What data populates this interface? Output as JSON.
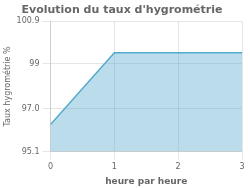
{
  "chart_data": {
    "type": "area",
    "title": "Evolution du taux d'hygrométrie",
    "xlabel": "heure par heure",
    "ylabel": "Taux hygrométrie %",
    "x": [
      0,
      1,
      3
    ],
    "values": [
      96.3,
      99.5,
      99.5
    ],
    "color": "#55aacc",
    "xlim": [
      0,
      3
    ],
    "xticks": [
      0,
      1,
      2,
      3
    ],
    "ylim": [
      95.1,
      100.9
    ],
    "yticks": [
      95.1,
      {
        "value": 97.0,
        "label": "97.0"
      },
      99.0,
      100.9
    ],
    "grid": true
  }
}
